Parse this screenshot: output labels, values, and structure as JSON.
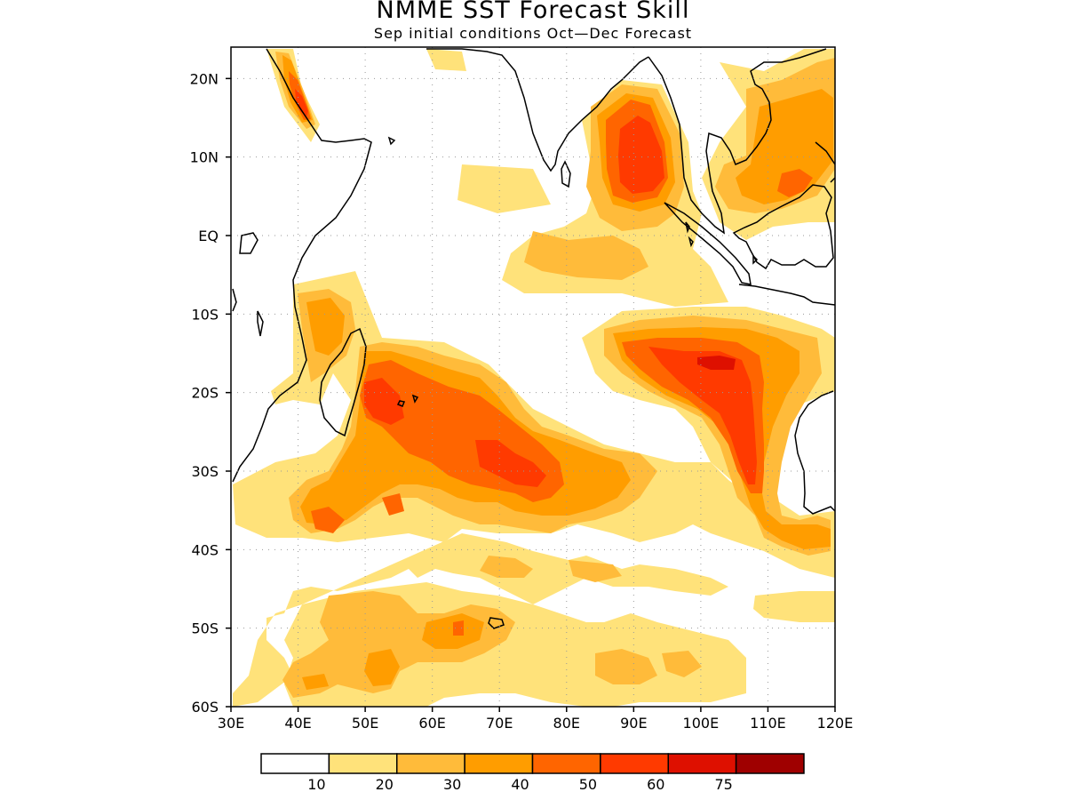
{
  "title": "NMME SST Forecast Skill",
  "subtitle": "Sep initial conditions  Oct—Dec Forecast",
  "map": {
    "lon_range": [
      30,
      120
    ],
    "lat_range": [
      -60,
      24
    ],
    "lon_ticks": [
      "30E",
      "40E",
      "50E",
      "60E",
      "70E",
      "80E",
      "90E",
      "100E",
      "110E",
      "120E"
    ],
    "lat_ticks": [
      "20N",
      "10N",
      "EQ",
      "10S",
      "20S",
      "30S",
      "40S",
      "50S",
      "60S"
    ],
    "grid": true
  },
  "colorbar": {
    "thresholds": [
      "10",
      "20",
      "30",
      "40",
      "50",
      "60",
      "75"
    ],
    "colors": [
      "#ffffff",
      "#ffe27a",
      "#ffbb3a",
      "#ff9d00",
      "#ff6500",
      "#ff3a00",
      "#de1000",
      "#9f0000"
    ]
  }
}
